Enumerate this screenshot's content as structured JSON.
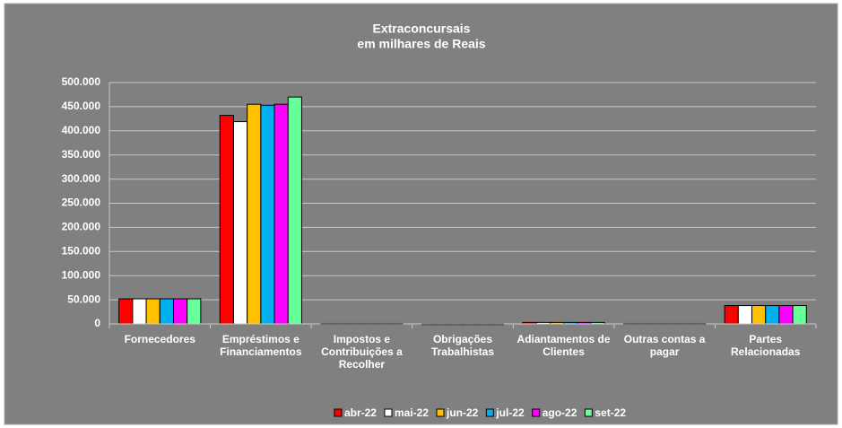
{
  "chart_data": {
    "type": "bar",
    "title": "Extraconcursais",
    "subtitle": "em milhares de Reais",
    "categories": [
      "Fornecedores",
      "Empréstimos e Financiamentos",
      "Impostos e Contribuições a Recolher",
      "Obrigações Trabalhistas",
      "Adiantamentos de Clientes",
      "Outras contas a pagar",
      "Partes Relacionadas"
    ],
    "series": [
      {
        "name": "abr-22",
        "color": "#ff0000",
        "values": [
          52000,
          432000,
          1000,
          500,
          3000,
          1000,
          38000
        ]
      },
      {
        "name": "mai-22",
        "color": "#ffffff",
        "values": [
          52000,
          419000,
          1000,
          500,
          3000,
          1000,
          38000
        ]
      },
      {
        "name": "jun-22",
        "color": "#ffc000",
        "values": [
          52000,
          455000,
          1000,
          500,
          3000,
          1000,
          38000
        ]
      },
      {
        "name": "jul-22",
        "color": "#00b0f0",
        "values": [
          52000,
          453000,
          1000,
          500,
          3000,
          1000,
          38000
        ]
      },
      {
        "name": "ago-22",
        "color": "#ff00ff",
        "values": [
          52000,
          455000,
          1000,
          500,
          3000,
          1000,
          38000
        ]
      },
      {
        "name": "set-22",
        "color": "#66ff99",
        "values": [
          52000,
          470000,
          1000,
          500,
          3000,
          1000,
          38000
        ]
      }
    ],
    "ylim": [
      0,
      500000
    ],
    "yticks": [
      0,
      {
        "value": 50000,
        "label": "50.000"
      },
      {
        "value": 100000,
        "label": "100.000"
      },
      {
        "value": 150000,
        "label": "150.000"
      },
      {
        "value": 200000,
        "label": "200.000"
      },
      {
        "value": 250000,
        "label": "250.000"
      },
      {
        "value": 300000,
        "label": "300.000"
      },
      {
        "value": 350000,
        "label": "350.000"
      },
      {
        "value": 400000,
        "label": "400.000"
      },
      {
        "value": 450000,
        "label": "450.000"
      },
      {
        "value": 500000,
        "label": "500.000"
      }
    ],
    "grid": true,
    "legend": "bottom"
  }
}
